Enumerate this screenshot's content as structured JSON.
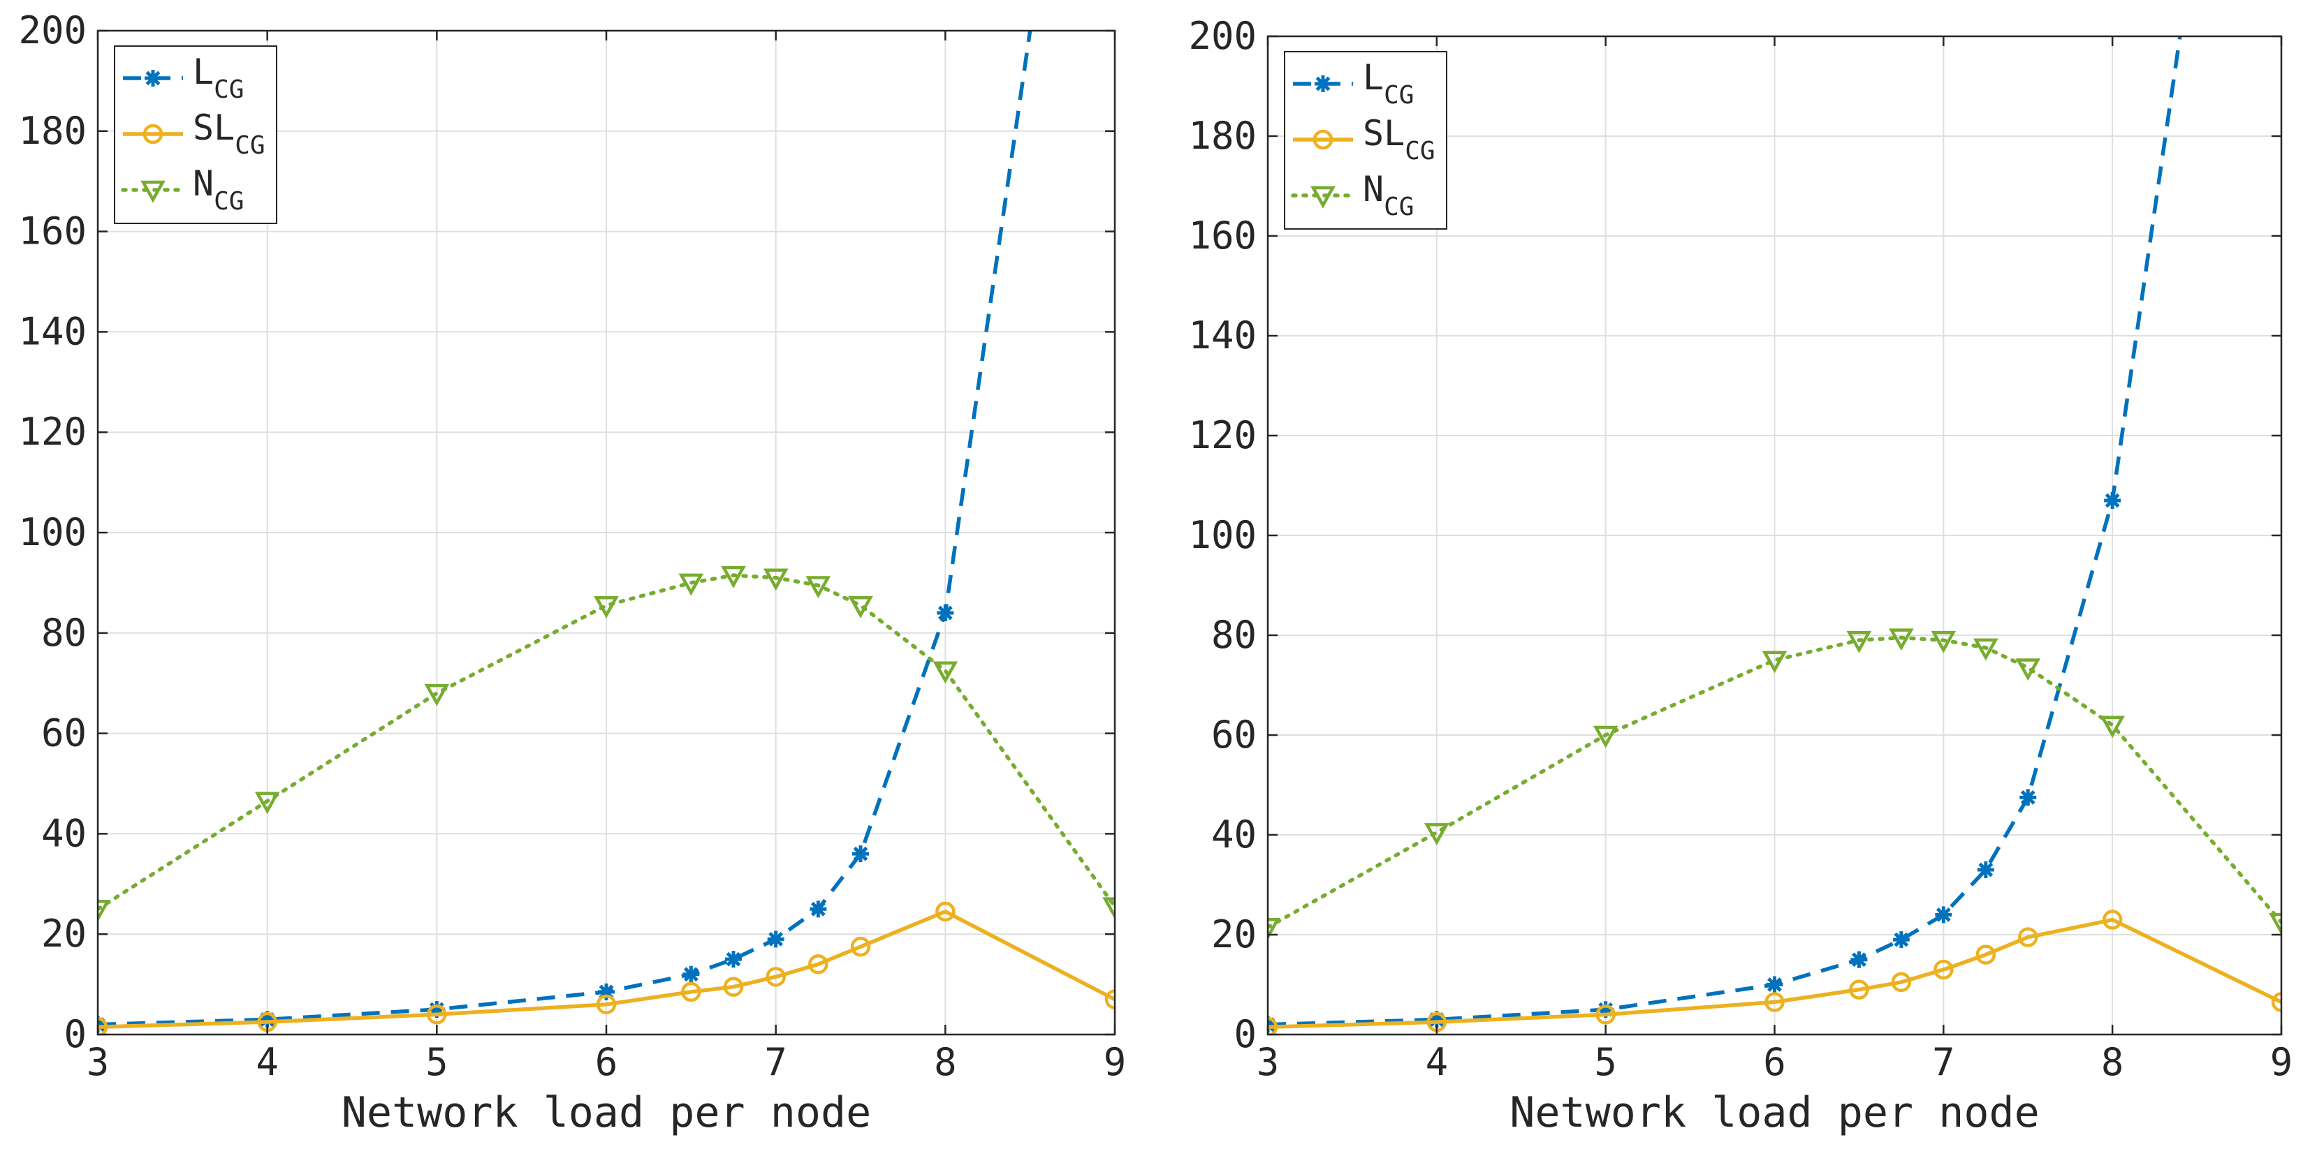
{
  "chart_data": [
    {
      "type": "line",
      "title": "",
      "xlabel": "Network load per node",
      "ylabel": "",
      "xlim": [
        3,
        9
      ],
      "ylim": [
        0,
        200
      ],
      "xticks": [
        3,
        4,
        5,
        6,
        7,
        8,
        9
      ],
      "yticks": [
        0,
        20,
        40,
        60,
        80,
        100,
        120,
        140,
        160,
        180,
        200
      ],
      "grid": true,
      "legend_position": "top-left",
      "series": [
        {
          "name": "L",
          "subscript": "CG",
          "color": "#0072BD",
          "linestyle": "dashed",
          "marker": "star",
          "x": [
            3,
            4,
            5,
            6,
            6.5,
            6.75,
            7,
            7.25,
            7.5,
            8,
            8.5
          ],
          "y": [
            2,
            3,
            5,
            8.5,
            12,
            15,
            19,
            25,
            36,
            84,
            200
          ]
        },
        {
          "name": "SL",
          "subscript": "CG",
          "color": "#EDB120",
          "linestyle": "solid",
          "marker": "circle",
          "x": [
            3,
            4,
            5,
            6,
            6.5,
            6.75,
            7,
            7.25,
            7.5,
            8,
            9
          ],
          "y": [
            1.5,
            2.5,
            4,
            6,
            8.5,
            9.5,
            11.5,
            14,
            17.5,
            24.5,
            7
          ]
        },
        {
          "name": "N",
          "subscript": "CG",
          "color": "#77AC30",
          "linestyle": "dotted",
          "marker": "triangle-down",
          "x": [
            3,
            4,
            5,
            6,
            6.5,
            6.75,
            7,
            7.25,
            7.5,
            8,
            9
          ],
          "y": [
            25,
            46.5,
            68,
            85.5,
            90,
            91.5,
            91,
            89.5,
            85.5,
            72.5,
            25.5
          ]
        }
      ]
    },
    {
      "type": "line",
      "title": "",
      "xlabel": "Network load per node",
      "ylabel": "",
      "xlim": [
        3,
        9
      ],
      "ylim": [
        0,
        200
      ],
      "xticks": [
        3,
        4,
        5,
        6,
        7,
        8,
        9
      ],
      "yticks": [
        0,
        20,
        40,
        60,
        80,
        100,
        120,
        140,
        160,
        180,
        200
      ],
      "grid": true,
      "legend_position": "top-left",
      "series": [
        {
          "name": "L",
          "subscript": "CG",
          "color": "#0072BD",
          "linestyle": "dashed",
          "marker": "star",
          "x": [
            3,
            4,
            5,
            6,
            6.5,
            6.75,
            7,
            7.25,
            7.5,
            8,
            8.4
          ],
          "y": [
            2,
            3,
            5,
            10,
            15,
            19,
            24,
            33,
            47.5,
            107,
            200
          ]
        },
        {
          "name": "SL",
          "subscript": "CG",
          "color": "#EDB120",
          "linestyle": "solid",
          "marker": "circle",
          "x": [
            3,
            4,
            5,
            6,
            6.5,
            6.75,
            7,
            7.25,
            7.5,
            8,
            9
          ],
          "y": [
            1.5,
            2.5,
            4,
            6.5,
            9,
            10.5,
            13,
            16,
            19.5,
            23,
            6.5
          ]
        },
        {
          "name": "N",
          "subscript": "CG",
          "color": "#77AC30",
          "linestyle": "dotted",
          "marker": "triangle-down",
          "x": [
            3,
            4,
            5,
            6,
            6.5,
            6.75,
            7,
            7.25,
            7.5,
            8,
            9
          ],
          "y": [
            21.5,
            40.5,
            60,
            75,
            79,
            79.5,
            79,
            77.5,
            73.5,
            62,
            22.5
          ]
        }
      ]
    }
  ]
}
